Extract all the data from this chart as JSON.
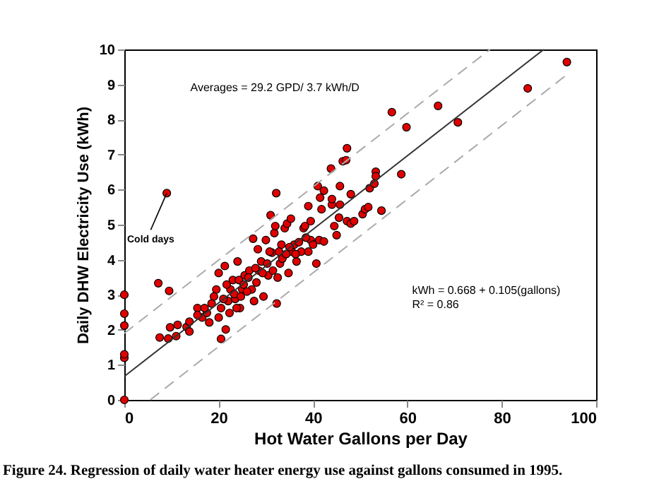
{
  "chart_data": {
    "type": "scatter",
    "xlabel": "Hot Water Gallons per Day",
    "ylabel": "Daily DHW Electricity Use (kWh)",
    "xlim": [
      0,
      100
    ],
    "xticks": [
      0,
      20,
      40,
      60,
      80,
      100
    ],
    "ylim": [
      0,
      10
    ],
    "yticks": [
      0,
      1,
      2,
      3,
      4,
      5,
      6,
      7,
      8,
      9,
      10
    ],
    "grid": false,
    "marker": "circle",
    "annotations": [
      "Averages = 29.2 GPD/ 3.7 kWh/D",
      "kWh = 0.668 + 0.105(gallons)",
      "R² = 0.86",
      {
        "text": "Cold days",
        "x": 9,
        "y": 5.9
      },
      "Figure 24.        Regression of daily water heater energy use against gallons consumed in 1995."
    ],
    "series": [
      {
        "color": "#e00000",
        "x": [
          0,
          0,
          0,
          0,
          0,
          0,
          7.2,
          9.5,
          9,
          7.5,
          9.3,
          9.7,
          11.3,
          11,
          13.2,
          13.8,
          13.8,
          20.5,
          21.5,
          15.5,
          16.5,
          17.5,
          18,
          18.5,
          19.5,
          20,
          21.3,
          20.5,
          22,
          22.5,
          23,
          24,
          23.5,
          24.5,
          25,
          25.5,
          26.5,
          27,
          27.3,
          27.5,
          28,
          28.3,
          28.5,
          29,
          29.5,
          30,
          30.5,
          31,
          31.3,
          31.8,
          32.2,
          32,
          32.3,
          32.5,
          33,
          33.3,
          34,
          34.5,
          34.8,
          35.3,
          35.5,
          36,
          36.5,
          37,
          37.5,
          38,
          38.3,
          39,
          39,
          39.5,
          39.5,
          40,
          40.7,
          41,
          41.3,
          41.5,
          41.8,
          42.3,
          42.3,
          43.8,
          44,
          44,
          44.5,
          45,
          45.5,
          45.7,
          45.7,
          46.3,
          47,
          47.2,
          47.2,
          48,
          48,
          48.7,
          50.5,
          51,
          51.7,
          52,
          53,
          53.3,
          53.3,
          54.5,
          58.7,
          56.7,
          59.8,
          66.5,
          70.7,
          85.5,
          93.8,
          15.5,
          17,
          19,
          20,
          21,
          21.7,
          22.3,
          23.3,
          23.8,
          24.3,
          24.7,
          25.3,
          26,
          26.3,
          27.8,
          29.3,
          30.3,
          30.8,
          31.5,
          32.8,
          33.5,
          34.3,
          35,
          36.3,
          38.5
        ],
        "values": [
          0,
          1.2,
          1.3,
          2.12,
          2.46,
          3.0,
          3.33,
          3.11,
          5.9,
          1.78,
          1.75,
          2.07,
          2.14,
          1.82,
          2.08,
          1.95,
          2.23,
          1.74,
          2.01,
          2.62,
          2.35,
          2.48,
          2.21,
          2.75,
          3.15,
          3.62,
          3.82,
          2.62,
          2.82,
          3.15,
          3.42,
          3.95,
          2.88,
          2.62,
          3.15,
          3.55,
          3.69,
          3.15,
          4.6,
          2.82,
          3.35,
          4.3,
          3.69,
          3.95,
          2.95,
          4.56,
          3.55,
          5.27,
          4.2,
          4.76,
          5.9,
          4.96,
          2.75,
          3.49,
          3.89,
          4.43,
          4.9,
          5.03,
          3.62,
          5.17,
          4.23,
          4.43,
          3.95,
          4.5,
          4.23,
          4.9,
          4.96,
          5.53,
          4.23,
          5.1,
          4.56,
          4.43,
          3.89,
          6.1,
          4.56,
          5.77,
          5.44,
          5.97,
          4.52,
          6.6,
          5.57,
          5.73,
          4.96,
          4.7,
          5.2,
          6.1,
          5.57,
          6.81,
          6.84,
          7.18,
          5.1,
          5.87,
          5.03,
          5.1,
          5.3,
          5.44,
          5.5,
          6.04,
          6.17,
          6.51,
          6.38,
          5.4,
          6.44,
          8.21,
          7.78,
          8.39,
          7.92,
          8.89,
          9.64,
          2.42,
          2.62,
          2.95,
          2.35,
          2.88,
          3.29,
          2.48,
          3.02,
          2.62,
          3.42,
          2.95,
          3.29,
          3.09,
          3.49,
          3.76,
          3.62,
          3.89,
          4.23,
          3.69,
          4.23,
          4.03,
          4.16,
          4.36,
          4.16,
          4.63
        ]
      },
      {
        "type": "line",
        "marker": "none",
        "color": "#333333",
        "line_style": "solid",
        "x": [
          0,
          88.9
        ],
        "values": [
          0.67,
          10
        ]
      },
      {
        "type": "line",
        "marker": "none",
        "color": "#aaaaaa",
        "line_style": "dashed",
        "x": [
          0,
          77.5
        ],
        "values": [
          1.9,
          10
        ]
      },
      {
        "type": "line",
        "marker": "none",
        "color": "#aaaaaa",
        "line_style": "dashed",
        "x": [
          5.5,
          94
        ],
        "values": [
          0,
          9.3
        ]
      }
    ]
  }
}
